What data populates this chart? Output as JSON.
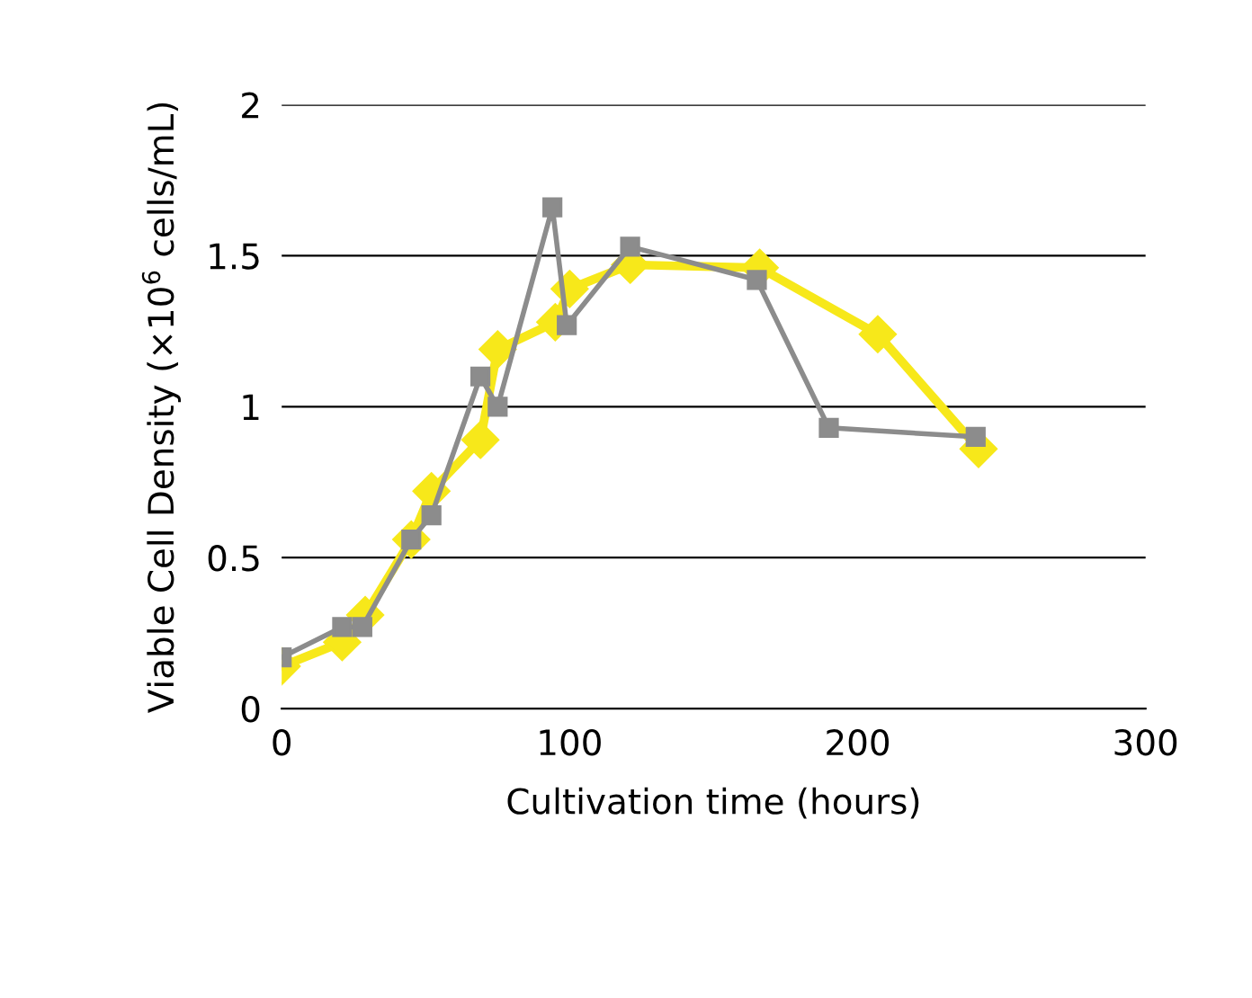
{
  "chart_data": {
    "type": "line",
    "xlabel": "Cultivation time (hours)",
    "ylabel": "Viable Cell Density (×10$^{6}$ cells/mL)",
    "xlim": [
      0,
      300
    ],
    "xticks": [
      0,
      100,
      200,
      300
    ],
    "ylim": [
      0,
      2
    ],
    "yticks": [
      0,
      0.5,
      1,
      1.5,
      2
    ],
    "grid": "y",
    "series": [
      {
        "color": "#f7e81a",
        "marker": "diamond",
        "x": [
          0,
          21,
          29,
          45,
          52,
          69,
          75,
          95,
          100,
          121,
          166,
          207,
          242
        ],
        "values": [
          0.14,
          0.22,
          0.31,
          0.56,
          0.72,
          0.89,
          1.19,
          1.28,
          1.39,
          1.47,
          1.46,
          1.24,
          0.86
        ]
      },
      {
        "color": "#8c8c8c",
        "marker": "square",
        "x": [
          0,
          21,
          28,
          45,
          52,
          69,
          75,
          94,
          99,
          121,
          165,
          190,
          241
        ],
        "values": [
          0.17,
          0.27,
          0.27,
          0.56,
          0.64,
          1.1,
          1.0,
          1.66,
          1.27,
          1.53,
          1.42,
          0.93,
          0.9
        ]
      }
    ]
  }
}
